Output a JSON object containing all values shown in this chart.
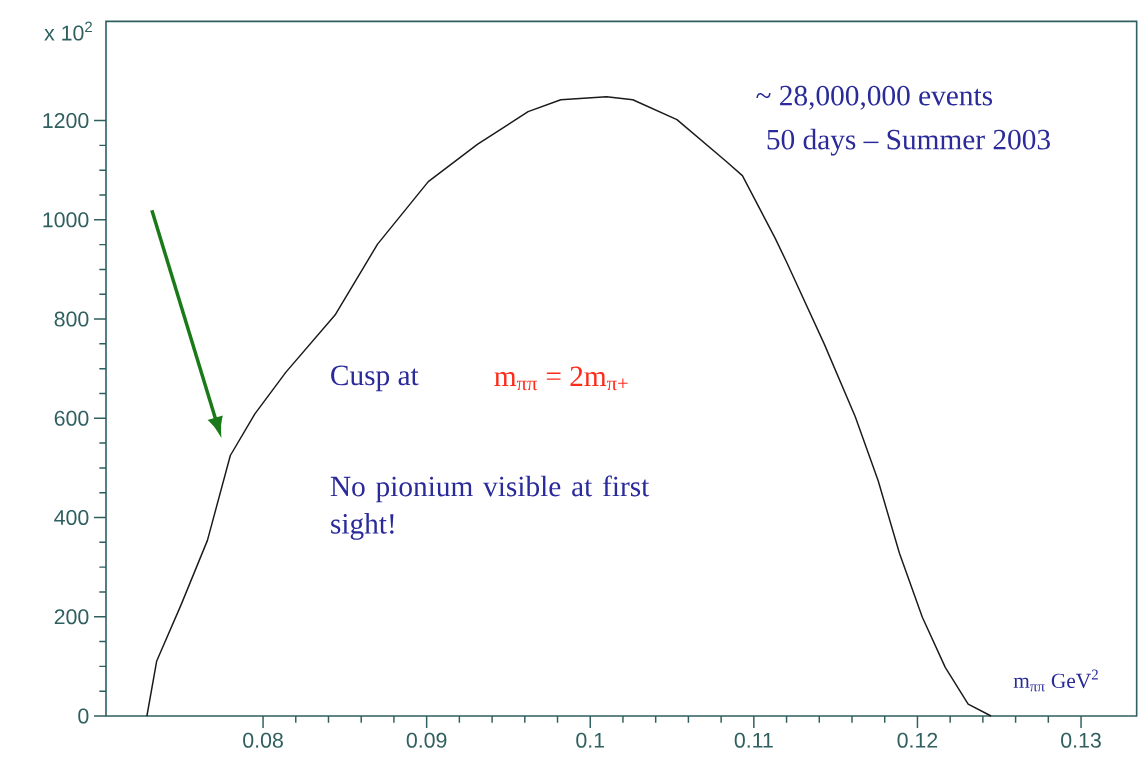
{
  "chart_data": {
    "type": "line",
    "xlabel": "m$_{ππ}$  GeV$^{2}$",
    "ylabel": "x 10$^{2}$",
    "annotations": [
      "~ 28,000,000 events",
      "50 days – Summer 2003",
      "Cusp at",
      "m$_{ππ}$ =  2m$_{π+}$",
      "No pionium visible at first sight!"
    ],
    "x": [
      0.0729,
      0.0735,
      0.075,
      0.0766,
      0.078,
      0.0795,
      0.0814,
      0.0844,
      0.087,
      0.0901,
      0.0931,
      0.0962,
      0.0982,
      0.101,
      0.1026,
      0.1053,
      0.1083,
      0.1093,
      0.1113,
      0.112,
      0.1143,
      0.1162,
      0.1176,
      0.1189,
      0.1203,
      0.1217,
      0.1231,
      0.1245
    ],
    "series": [
      {
        "color": "#1a1a1a",
        "values": [
          0,
          111,
          225,
          354,
          525,
          609,
          693,
          808,
          951,
          1077,
          1152,
          1218,
          1242,
          1248,
          1242,
          1202,
          1118,
          1089,
          963,
          915,
          750,
          603,
          474,
          328,
          199,
          98,
          24,
          0
        ]
      }
    ],
    "xlim": [
      0.0704,
      0.1334
    ],
    "ylim": [
      0,
      1400
    ],
    "xticks": [
      0.08,
      0.09,
      0.1,
      0.11,
      0.12,
      0.13
    ],
    "yticks": [
      0,
      200,
      400,
      600,
      800,
      1000,
      1200
    ]
  }
}
